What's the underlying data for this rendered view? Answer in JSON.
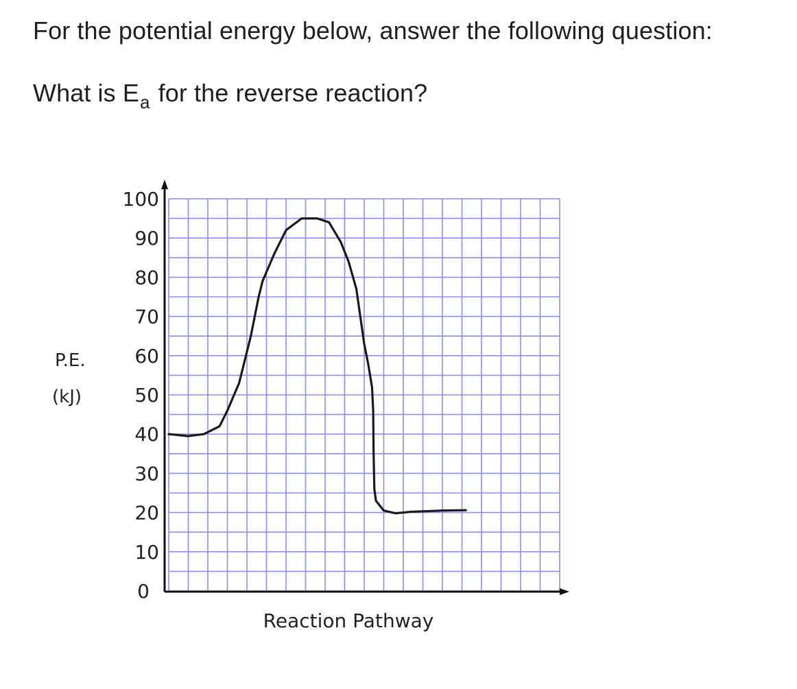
{
  "question": {
    "intro": "For the potential energy below, answer the following question:",
    "prompt_before": "What is E",
    "prompt_subscript": "a",
    "prompt_after": " for the reverse reaction?"
  },
  "chart_data": {
    "type": "line",
    "xlabel": "Reaction Pathway",
    "ylabel_lines": [
      "P.E.",
      "(kJ)"
    ],
    "ylim": [
      0,
      100
    ],
    "y_ticks": [
      100,
      90,
      80,
      70,
      60,
      50,
      40,
      30,
      20,
      10,
      0
    ],
    "grid": true,
    "grid_color": "#8c8cf5",
    "curve_color": "#1a1a1a",
    "series": [
      {
        "points": [
          [
            0,
            40
          ],
          [
            5,
            39.5
          ],
          [
            9,
            40
          ],
          [
            13,
            42
          ],
          [
            15,
            46
          ],
          [
            18,
            53
          ],
          [
            21,
            65
          ],
          [
            23,
            75
          ],
          [
            24,
            79
          ],
          [
            27,
            86
          ],
          [
            30,
            92
          ],
          [
            34,
            95
          ],
          [
            38,
            95
          ],
          [
            41,
            94
          ],
          [
            44,
            89
          ],
          [
            46,
            84
          ],
          [
            48,
            77
          ],
          [
            49,
            70
          ],
          [
            50,
            63
          ],
          [
            51,
            58
          ],
          [
            52,
            52
          ],
          [
            52.3,
            46
          ],
          [
            52.4,
            35
          ],
          [
            52.6,
            26
          ],
          [
            53,
            23
          ],
          [
            55,
            20.5
          ],
          [
            58,
            19.8
          ],
          [
            62,
            20.2
          ],
          [
            70,
            20.5
          ],
          [
            76,
            20.6
          ]
        ]
      }
    ]
  }
}
